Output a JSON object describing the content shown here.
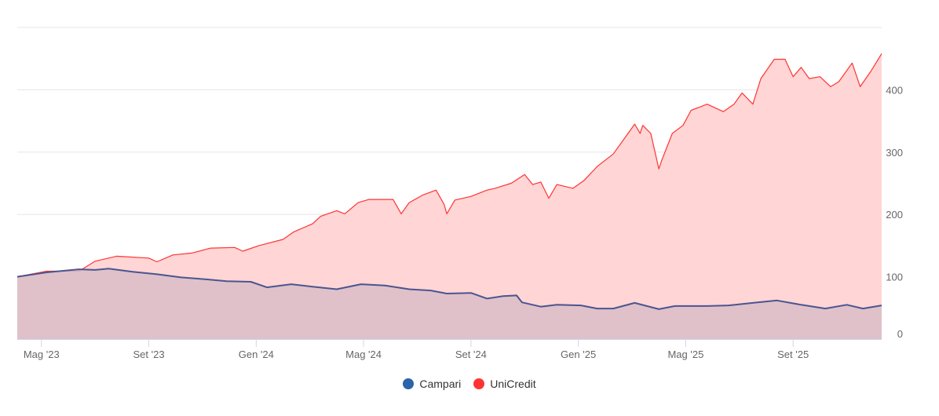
{
  "chart_data": {
    "type": "area",
    "title": "",
    "xlabel": "",
    "ylabel": "",
    "x_unit": "months since 1 Apr 2023",
    "xlim": [
      0.1,
      32.3
    ],
    "ylim": [
      0,
      500
    ],
    "yticks": [
      0,
      100,
      200,
      300,
      400
    ],
    "xticks": [
      {
        "x": 1,
        "label": "Mag '23"
      },
      {
        "x": 5,
        "label": "Set '23"
      },
      {
        "x": 9,
        "label": "Gen '24"
      },
      {
        "x": 13,
        "label": "Mag '24"
      },
      {
        "x": 17,
        "label": "Set '24"
      },
      {
        "x": 21,
        "label": "Gen '25"
      },
      {
        "x": 25,
        "label": "Mag '25"
      },
      {
        "x": 29,
        "label": "Set '25"
      }
    ],
    "grid": true,
    "legend_position": "bottom-center",
    "series": [
      {
        "name": "UniCredit",
        "color": "#ff3333",
        "fill": "#ffd5d5",
        "points": [
          [
            0.1,
            100
          ],
          [
            1.2,
            109
          ],
          [
            2.4,
            109
          ],
          [
            3.0,
            125
          ],
          [
            3.8,
            133
          ],
          [
            5.0,
            130
          ],
          [
            5.3,
            124
          ],
          [
            5.9,
            135
          ],
          [
            6.6,
            138
          ],
          [
            7.3,
            146
          ],
          [
            8.2,
            147
          ],
          [
            8.5,
            141
          ],
          [
            9.1,
            150
          ],
          [
            10.0,
            160
          ],
          [
            10.4,
            172
          ],
          [
            11.1,
            185
          ],
          [
            11.4,
            197
          ],
          [
            12.0,
            206
          ],
          [
            12.3,
            201
          ],
          [
            12.8,
            219
          ],
          [
            13.2,
            224
          ],
          [
            14.1,
            224
          ],
          [
            14.4,
            201
          ],
          [
            14.7,
            219
          ],
          [
            15.2,
            231
          ],
          [
            15.7,
            239
          ],
          [
            16.0,
            216
          ],
          [
            16.1,
            201
          ],
          [
            16.4,
            223
          ],
          [
            17.0,
            229
          ],
          [
            17.6,
            239
          ],
          [
            17.9,
            242
          ],
          [
            18.5,
            250
          ],
          [
            19.0,
            264
          ],
          [
            19.3,
            248
          ],
          [
            19.6,
            252
          ],
          [
            19.9,
            226
          ],
          [
            20.2,
            248
          ],
          [
            20.8,
            242
          ],
          [
            21.2,
            254
          ],
          [
            21.7,
            277
          ],
          [
            22.3,
            297
          ],
          [
            22.8,
            327
          ],
          [
            23.1,
            345
          ],
          [
            23.3,
            330
          ],
          [
            23.4,
            343
          ],
          [
            23.7,
            330
          ],
          [
            24.0,
            273
          ],
          [
            24.1,
            286
          ],
          [
            24.5,
            330
          ],
          [
            24.9,
            343
          ],
          [
            25.2,
            367
          ],
          [
            25.8,
            377
          ],
          [
            26.4,
            365
          ],
          [
            26.8,
            377
          ],
          [
            27.1,
            395
          ],
          [
            27.5,
            377
          ],
          [
            27.8,
            418
          ],
          [
            28.3,
            449
          ],
          [
            28.7,
            449
          ],
          [
            29.0,
            421
          ],
          [
            29.3,
            436
          ],
          [
            29.6,
            418
          ],
          [
            30.0,
            421
          ],
          [
            30.4,
            405
          ],
          [
            30.7,
            413
          ],
          [
            31.2,
            443
          ],
          [
            31.5,
            405
          ],
          [
            31.9,
            430
          ],
          [
            32.3,
            458
          ]
        ]
      },
      {
        "name": "Campari",
        "color": "#4a5590",
        "legend_color": "#2b64a8",
        "fill": "#dbbdc8",
        "points": [
          [
            0.1,
            100
          ],
          [
            1.2,
            107
          ],
          [
            2.4,
            112
          ],
          [
            3.0,
            111
          ],
          [
            3.5,
            113
          ],
          [
            4.4,
            108
          ],
          [
            5.3,
            104
          ],
          [
            6.2,
            99
          ],
          [
            7.1,
            96
          ],
          [
            7.9,
            93
          ],
          [
            8.8,
            92
          ],
          [
            9.4,
            83
          ],
          [
            10.3,
            88
          ],
          [
            11.1,
            84
          ],
          [
            12.0,
            80
          ],
          [
            12.9,
            88
          ],
          [
            13.8,
            86
          ],
          [
            14.7,
            80
          ],
          [
            15.5,
            78
          ],
          [
            16.1,
            73
          ],
          [
            17.0,
            74
          ],
          [
            17.6,
            65
          ],
          [
            18.2,
            69
          ],
          [
            18.7,
            70
          ],
          [
            18.9,
            59
          ],
          [
            19.6,
            52
          ],
          [
            20.2,
            55
          ],
          [
            21.1,
            54
          ],
          [
            21.7,
            49
          ],
          [
            22.3,
            49
          ],
          [
            23.1,
            58
          ],
          [
            24.0,
            48
          ],
          [
            24.6,
            53
          ],
          [
            25.8,
            53
          ],
          [
            26.6,
            54
          ],
          [
            27.5,
            58
          ],
          [
            28.4,
            62
          ],
          [
            29.3,
            55
          ],
          [
            30.2,
            49
          ],
          [
            31.0,
            55
          ],
          [
            31.6,
            49
          ],
          [
            32.3,
            54
          ]
        ]
      }
    ]
  }
}
